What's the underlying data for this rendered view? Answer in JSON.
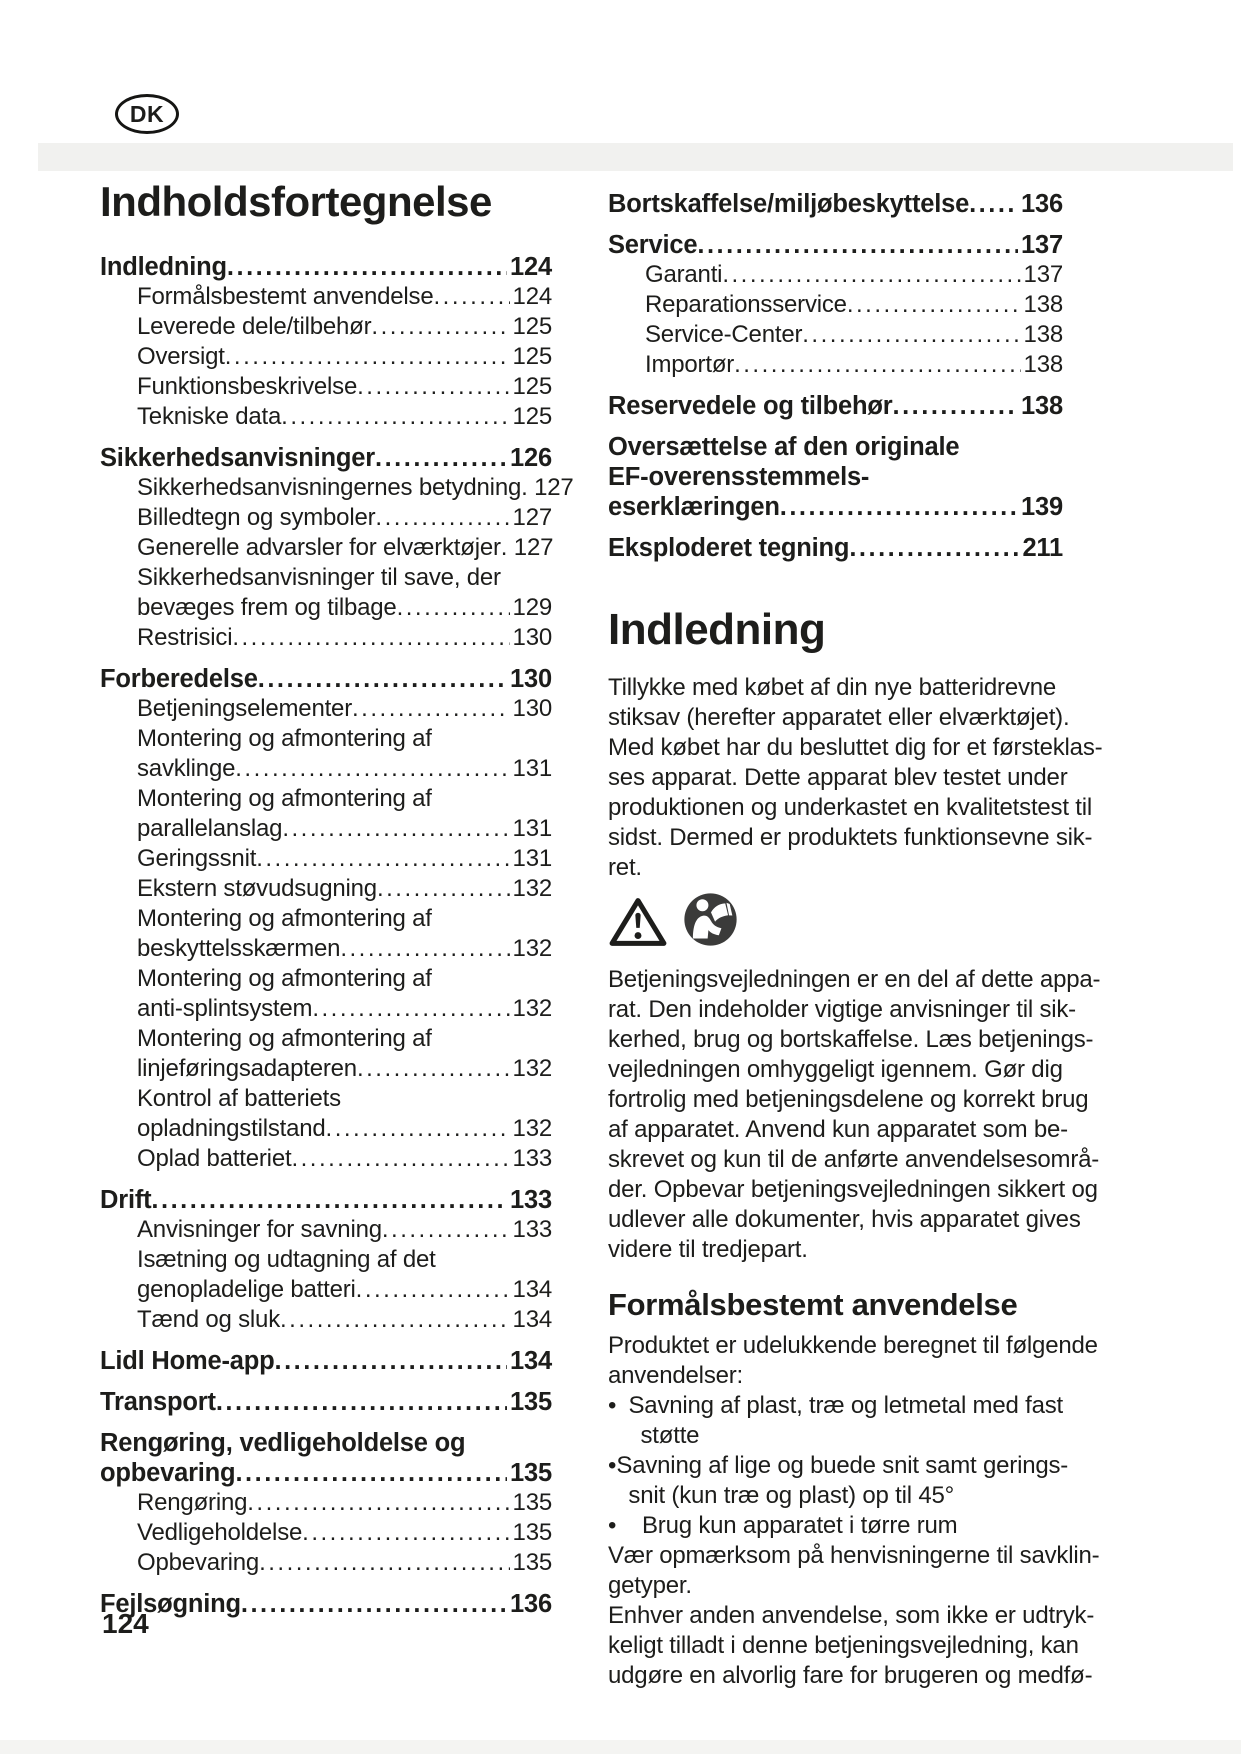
{
  "badge": {
    "label": "DK"
  },
  "footer": {
    "page_number": "124"
  },
  "toc": {
    "title": "Indholdsfortegnelse",
    "left": [
      {
        "label_lines": [
          "Indledning"
        ],
        "page": "124",
        "bold": true,
        "sub": false
      },
      {
        "label_lines": [
          "Formålsbestemt anvendelse"
        ],
        "page": "124",
        "bold": false,
        "sub": true
      },
      {
        "label_lines": [
          "Leverede dele/tilbehør"
        ],
        "page": "125",
        "bold": false,
        "sub": true
      },
      {
        "label_lines": [
          "Oversigt"
        ],
        "page": "125",
        "bold": false,
        "sub": true
      },
      {
        "label_lines": [
          "Funktionsbeskrivelse"
        ],
        "page": "125",
        "bold": false,
        "sub": true
      },
      {
        "label_lines": [
          "Tekniske data"
        ],
        "page": "125",
        "bold": false,
        "sub": true
      },
      {
        "label_lines": [
          "Sikkerhedsanvisninger"
        ],
        "page": "126",
        "bold": true,
        "sub": false
      },
      {
        "label_lines": [
          "Sikkerhedsanvisningernes betydning"
        ],
        "page": "127",
        "bold": false,
        "sub": true
      },
      {
        "label_lines": [
          "Billedtegn og symboler"
        ],
        "page": "127",
        "bold": false,
        "sub": true
      },
      {
        "label_lines": [
          "Generelle advarsler for elværktøjer"
        ],
        "page": "127",
        "bold": false,
        "sub": true
      },
      {
        "label_lines": [
          "Sikkerhedsanvisninger til save, der",
          "bevæges frem og tilbage"
        ],
        "page": "129",
        "bold": false,
        "sub": true
      },
      {
        "label_lines": [
          "Restrisici"
        ],
        "page": "130",
        "bold": false,
        "sub": true
      },
      {
        "label_lines": [
          "Forberedelse"
        ],
        "page": "130",
        "bold": true,
        "sub": false
      },
      {
        "label_lines": [
          "Betjeningselementer"
        ],
        "page": "130",
        "bold": false,
        "sub": true
      },
      {
        "label_lines": [
          "Montering og afmontering af",
          "savklinge"
        ],
        "page": "131",
        "bold": false,
        "sub": true
      },
      {
        "label_lines": [
          "Montering og afmontering af",
          "parallelanslag"
        ],
        "page": "131",
        "bold": false,
        "sub": true
      },
      {
        "label_lines": [
          "Geringssnit"
        ],
        "page": "131",
        "bold": false,
        "sub": true
      },
      {
        "label_lines": [
          "Ekstern støvudsugning"
        ],
        "page": "132",
        "bold": false,
        "sub": true
      },
      {
        "label_lines": [
          "Montering og afmontering af",
          "beskyttelsskærmen"
        ],
        "page": "132",
        "bold": false,
        "sub": true
      },
      {
        "label_lines": [
          "Montering og afmontering af",
          "anti-splintsystem"
        ],
        "page": "132",
        "bold": false,
        "sub": true
      },
      {
        "label_lines": [
          "Montering og afmontering af",
          "linjeføringsadapteren"
        ],
        "page": "132",
        "bold": false,
        "sub": true
      },
      {
        "label_lines": [
          "Kontrol af batteriets",
          "opladningstilstand"
        ],
        "page": "132",
        "bold": false,
        "sub": true
      },
      {
        "label_lines": [
          "Oplad batteriet"
        ],
        "page": "133",
        "bold": false,
        "sub": true
      },
      {
        "label_lines": [
          "Drift"
        ],
        "page": "133",
        "bold": true,
        "sub": false
      },
      {
        "label_lines": [
          "Anvisninger for savning"
        ],
        "page": "133",
        "bold": false,
        "sub": true
      },
      {
        "label_lines": [
          "Isætning og udtagning af det",
          "genopladelige batteri"
        ],
        "page": "134",
        "bold": false,
        "sub": true
      },
      {
        "label_lines": [
          "Tænd og sluk"
        ],
        "page": "134",
        "bold": false,
        "sub": true
      },
      {
        "label_lines": [
          "Lidl Home-app"
        ],
        "page": "134",
        "bold": true,
        "sub": false
      },
      {
        "label_lines": [
          "Transport"
        ],
        "page": "135",
        "bold": true,
        "sub": false
      },
      {
        "label_lines": [
          "Rengøring, vedligeholdelse og",
          "opbevaring"
        ],
        "page": "135",
        "bold": true,
        "sub": false
      },
      {
        "label_lines": [
          "Rengøring"
        ],
        "page": "135",
        "bold": false,
        "sub": true
      },
      {
        "label_lines": [
          "Vedligeholdelse"
        ],
        "page": "135",
        "bold": false,
        "sub": true
      },
      {
        "label_lines": [
          "Opbevaring"
        ],
        "page": "135",
        "bold": false,
        "sub": true
      },
      {
        "label_lines": [
          "Fejlsøgning"
        ],
        "page": "136",
        "bold": true,
        "sub": false
      }
    ],
    "right": [
      {
        "label_lines": [
          "Bortskaffelse/miljøbeskyttelse"
        ],
        "page": "136",
        "bold": true,
        "sub": false
      },
      {
        "label_lines": [
          "Service"
        ],
        "page": "137",
        "bold": true,
        "sub": false
      },
      {
        "label_lines": [
          "Garanti"
        ],
        "page": "137",
        "bold": false,
        "sub": true
      },
      {
        "label_lines": [
          "Reparationsservice"
        ],
        "page": "138",
        "bold": false,
        "sub": true
      },
      {
        "label_lines": [
          "Service-Center"
        ],
        "page": "138",
        "bold": false,
        "sub": true
      },
      {
        "label_lines": [
          "Importør"
        ],
        "page": "138",
        "bold": false,
        "sub": true
      },
      {
        "label_lines": [
          "Reservedele og tilbehør"
        ],
        "page": "138",
        "bold": true,
        "sub": false
      },
      {
        "label_lines": [
          "Oversættelse af den originale",
          "EF-overensstemmels-",
          "eserklæringen"
        ],
        "page": "139",
        "bold": true,
        "sub": false
      },
      {
        "label_lines": [
          "Eksploderet tegning"
        ],
        "page": "211",
        "bold": true,
        "sub": false
      }
    ]
  },
  "article": {
    "heading": "Indledning",
    "paragraph1": [
      "Tillykke med købet af din nye batteridrevne",
      "stiksav (herefter apparatet eller elværktøjet).",
      "Med købet har du besluttet dig for et førsteklas-",
      "ses apparat. Dette apparat blev testet under",
      "produktionen og underkastet en kvalitetstest til",
      "sidst. Dermed er produktets funktionsevne sik-",
      "ret."
    ],
    "icons": [
      {
        "name": "warning-triangle-icon"
      },
      {
        "name": "read-manual-icon"
      }
    ],
    "paragraph2": [
      "Betjeningsvejledningen er en del af dette appa-",
      "rat. Den indeholder vigtige anvisninger til sik-",
      "kerhed, brug og bortskaffelse. Læs betjenings-",
      "vejledningen omhyggeligt igennem. Gør dig",
      "fortrolig med betjeningsdelene og korrekt brug",
      "af apparatet. Anvend kun apparatet som be-",
      "skrevet og kun til de anførte anvendelsesområ-",
      "der. Opbevar betjeningsvejledningen sikkert og",
      "udlever alle dokumenter, hvis apparatet gives",
      "videre til tredjepart."
    ],
    "subheading": "Formålsbestemt anvendelse",
    "paragraph3": [
      "Produktet er udelukkende beregnet til følgende",
      "anvendelser:"
    ],
    "bullets": [
      {
        "lines": [
          "Savning af plast, træ og letmetal med fast",
          "støtte"
        ]
      },
      {
        "lines": [
          "Savning af lige og buede snit samt gerings-",
          "snit (kun træ og plast) op til 45°"
        ]
      },
      {
        "lines": [
          "Brug kun apparatet i tørre rum"
        ]
      }
    ],
    "paragraph4": [
      "Vær opmærksom på henvisningerne til savklin-",
      "getyper."
    ],
    "paragraph5": [
      "Enhver anden anvendelse, som ikke er udtryk-",
      "keligt tilladt i denne betjeningsvejledning, kan",
      "udgøre en alvorlig fare for brugeren og medfø-"
    ]
  }
}
